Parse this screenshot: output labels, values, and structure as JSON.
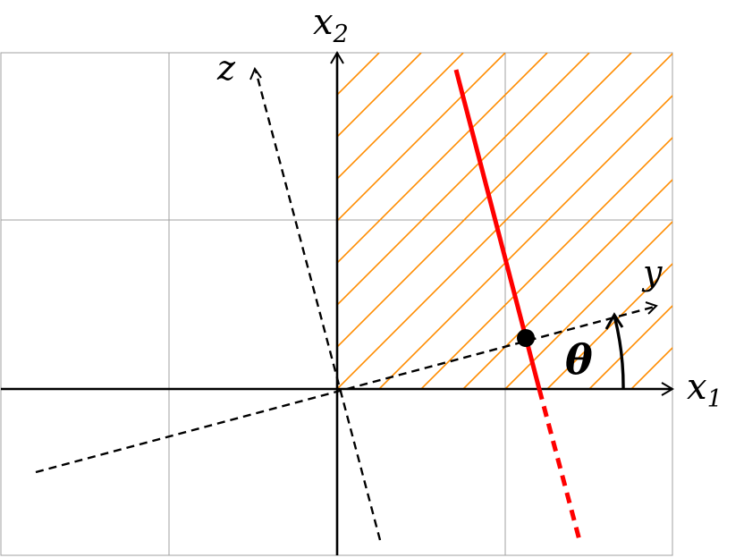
{
  "labels": {
    "x1_axis": {
      "base": "x",
      "sub": "1"
    },
    "x2_axis": {
      "base": "x",
      "sub": "2"
    },
    "y_axis": "y",
    "z_axis": "z",
    "angle": "θ"
  },
  "colors": {
    "grid": "#a0a0a0",
    "axes": "#000000",
    "hatch": "#ff8c00",
    "line": "#ff0000",
    "point": "#000000"
  }
}
